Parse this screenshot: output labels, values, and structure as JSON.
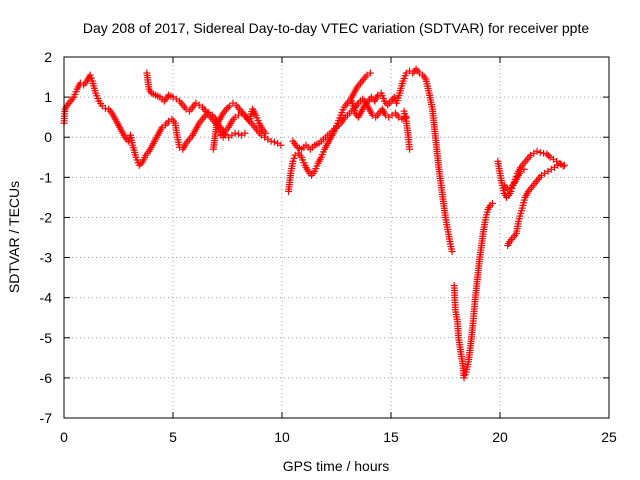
{
  "chart_data": {
    "type": "scatter",
    "title": "Day 208 of 2017, Sidereal Day-to-day VTEC variation (SDTVAR) for receiver ppte",
    "xlabel": "GPS time / hours",
    "ylabel": "SDTVAR / TECUs",
    "xlim": [
      0,
      25
    ],
    "ylim": [
      -7,
      2
    ],
    "xticks": [
      "0",
      "5",
      "10",
      "15",
      "20",
      "25"
    ],
    "yticks": [
      "2",
      "1",
      "0",
      "-1",
      "-2",
      "-3",
      "-4",
      "-5",
      "-6",
      "-7"
    ],
    "grid": true,
    "marker": "+",
    "series_color": "#ff0000",
    "segments": [
      [
        [
          0.0,
          0.35
        ],
        [
          0.05,
          0.7
        ],
        [
          0.15,
          0.8
        ],
        [
          0.3,
          0.9
        ],
        [
          0.45,
          1.0
        ],
        [
          0.6,
          1.2
        ],
        [
          0.75,
          1.35
        ],
        [
          0.9,
          1.3
        ],
        [
          1.05,
          1.4
        ],
        [
          1.2,
          1.55
        ],
        [
          1.3,
          1.4
        ],
        [
          1.45,
          1.1
        ],
        [
          1.6,
          0.9
        ],
        [
          1.75,
          0.78
        ],
        [
          1.9,
          0.72
        ],
        [
          2.05,
          0.7
        ],
        [
          2.2,
          0.6
        ],
        [
          2.35,
          0.45
        ],
        [
          2.5,
          0.3
        ],
        [
          2.65,
          0.15
        ],
        [
          2.8,
          0.0
        ],
        [
          2.95,
          -0.1
        ],
        [
          3.05,
          0.05
        ],
        [
          3.15,
          -0.2
        ],
        [
          3.3,
          -0.5
        ],
        [
          3.45,
          -0.7
        ],
        [
          3.6,
          -0.62
        ],
        [
          3.75,
          -0.45
        ],
        [
          3.9,
          -0.35
        ],
        [
          4.05,
          -0.2
        ],
        [
          4.2,
          -0.05
        ],
        [
          4.35,
          0.1
        ],
        [
          4.5,
          0.25
        ],
        [
          4.65,
          0.3
        ],
        [
          4.8,
          0.4
        ],
        [
          4.95,
          0.45
        ],
        [
          5.1,
          0.35
        ],
        [
          5.2,
          0.0
        ],
        [
          5.3,
          -0.25
        ],
        [
          5.45,
          -0.3
        ],
        [
          5.6,
          -0.15
        ],
        [
          5.75,
          -0.05
        ],
        [
          5.9,
          0.05
        ],
        [
          6.05,
          0.2
        ],
        [
          6.2,
          0.35
        ],
        [
          6.35,
          0.45
        ],
        [
          6.5,
          0.55
        ],
        [
          6.65,
          0.62
        ],
        [
          6.8,
          0.55
        ],
        [
          6.95,
          0.45
        ],
        [
          7.1,
          0.3
        ],
        [
          7.25,
          0.2
        ],
        [
          7.4,
          0.05
        ],
        [
          7.55,
          0.0
        ],
        [
          7.7,
          0.05
        ],
        [
          7.85,
          0.1
        ],
        [
          8.0,
          0.08
        ],
        [
          8.15,
          0.05
        ],
        [
          8.3,
          0.1
        ]
      ],
      [
        [
          3.8,
          1.6
        ],
        [
          3.9,
          1.2
        ],
        [
          4.0,
          1.1
        ],
        [
          4.2,
          1.05
        ],
        [
          4.4,
          1.0
        ],
        [
          4.6,
          0.9
        ],
        [
          4.8,
          1.05
        ],
        [
          5.0,
          1.0
        ],
        [
          5.15,
          0.95
        ],
        [
          5.3,
          0.9
        ],
        [
          5.45,
          0.8
        ],
        [
          5.6,
          0.7
        ],
        [
          5.75,
          0.65
        ],
        [
          5.9,
          0.75
        ],
        [
          6.05,
          0.85
        ],
        [
          6.2,
          0.8
        ],
        [
          6.35,
          0.75
        ],
        [
          6.5,
          0.65
        ],
        [
          6.65,
          0.55
        ],
        [
          6.8,
          0.45
        ],
        [
          6.95,
          0.35
        ],
        [
          7.1,
          0.2
        ],
        [
          7.2,
          0.05
        ],
        [
          7.3,
          0.0
        ],
        [
          7.4,
          0.15
        ],
        [
          7.55,
          0.25
        ],
        [
          7.7,
          0.4
        ],
        [
          7.85,
          0.5
        ],
        [
          8.0,
          0.55
        ],
        [
          8.15,
          0.6
        ],
        [
          8.3,
          0.55
        ],
        [
          8.45,
          0.45
        ],
        [
          8.6,
          0.35
        ],
        [
          8.75,
          0.25
        ],
        [
          8.9,
          0.15
        ],
        [
          9.05,
          0.05
        ],
        [
          9.2,
          0.0
        ],
        [
          9.35,
          -0.05
        ],
        [
          9.5,
          -0.1
        ],
        [
          9.65,
          -0.12
        ],
        [
          9.8,
          -0.15
        ],
        [
          9.95,
          -0.2
        ]
      ],
      [
        [
          6.85,
          -0.3
        ],
        [
          7.0,
          0.3
        ],
        [
          7.15,
          0.45
        ],
        [
          7.3,
          0.6
        ],
        [
          7.45,
          0.7
        ],
        [
          7.6,
          0.78
        ],
        [
          7.75,
          0.85
        ],
        [
          7.9,
          0.8
        ],
        [
          8.05,
          0.7
        ],
        [
          8.2,
          0.6
        ],
        [
          8.35,
          0.5
        ],
        [
          8.5,
          0.4
        ],
        [
          8.65,
          0.7
        ],
        [
          8.8,
          0.55
        ],
        [
          8.95,
          0.35
        ],
        [
          9.1,
          0.2
        ],
        [
          9.25,
          0.1
        ]
      ],
      [
        [
          10.3,
          -1.35
        ],
        [
          10.4,
          -0.9
        ],
        [
          10.5,
          -0.6
        ],
        [
          10.6,
          -0.45
        ],
        [
          10.75,
          -0.4
        ],
        [
          10.9,
          -0.5
        ],
        [
          11.05,
          -0.7
        ],
        [
          11.2,
          -0.85
        ],
        [
          11.35,
          -0.95
        ],
        [
          11.5,
          -0.85
        ],
        [
          11.65,
          -0.65
        ],
        [
          11.8,
          -0.5
        ],
        [
          11.95,
          -0.3
        ],
        [
          12.1,
          -0.15
        ],
        [
          12.25,
          0.0
        ],
        [
          12.4,
          0.15
        ],
        [
          12.55,
          0.35
        ],
        [
          12.7,
          0.55
        ],
        [
          12.85,
          0.75
        ],
        [
          13.0,
          0.85
        ],
        [
          13.15,
          0.95
        ],
        [
          13.3,
          1.1
        ],
        [
          13.45,
          1.25
        ],
        [
          13.6,
          1.35
        ],
        [
          13.75,
          1.45
        ],
        [
          13.9,
          1.55
        ],
        [
          14.05,
          1.6
        ]
      ],
      [
        [
          10.5,
          -0.1
        ],
        [
          10.7,
          -0.25
        ],
        [
          10.9,
          -0.3
        ],
        [
          11.1,
          -0.2
        ],
        [
          11.3,
          -0.3
        ],
        [
          11.5,
          -0.2
        ],
        [
          11.7,
          -0.15
        ],
        [
          11.9,
          -0.05
        ],
        [
          12.1,
          0.05
        ],
        [
          12.3,
          0.15
        ],
        [
          12.5,
          0.25
        ],
        [
          12.7,
          0.35
        ],
        [
          12.9,
          0.5
        ],
        [
          13.1,
          0.6
        ],
        [
          13.3,
          0.7
        ],
        [
          13.5,
          0.85
        ],
        [
          13.7,
          0.95
        ],
        [
          13.85,
          0.85
        ],
        [
          14.0,
          0.7
        ],
        [
          14.15,
          0.55
        ],
        [
          14.3,
          0.5
        ],
        [
          14.45,
          0.6
        ],
        [
          14.6,
          0.7
        ],
        [
          14.75,
          0.55
        ],
        [
          14.9,
          0.5
        ],
        [
          15.05,
          0.55
        ],
        [
          15.2,
          0.6
        ],
        [
          15.35,
          0.5
        ],
        [
          15.5,
          0.45
        ],
        [
          15.7,
          0.5
        ]
      ],
      [
        [
          13.2,
          0.9
        ],
        [
          13.35,
          0.6
        ],
        [
          13.5,
          0.5
        ],
        [
          13.65,
          0.65
        ],
        [
          13.8,
          0.8
        ],
        [
          13.95,
          0.9
        ],
        [
          14.1,
          1.0
        ],
        [
          14.25,
          0.9
        ],
        [
          14.4,
          1.05
        ],
        [
          14.55,
          1.1
        ],
        [
          14.7,
          0.9
        ],
        [
          14.85,
          0.8
        ],
        [
          15.0,
          0.9
        ],
        [
          15.15,
          1.0
        ],
        [
          15.25,
          0.85
        ],
        [
          15.4,
          1.1
        ],
        [
          15.55,
          1.4
        ],
        [
          15.7,
          1.6
        ],
        [
          15.85,
          1.65
        ],
        [
          16.0,
          1.6
        ],
        [
          16.15,
          1.7
        ],
        [
          16.3,
          1.6
        ],
        [
          16.45,
          1.55
        ],
        [
          16.6,
          1.45
        ],
        [
          16.75,
          1.1
        ],
        [
          16.9,
          0.7
        ],
        [
          17.0,
          0.2
        ],
        [
          17.1,
          -0.3
        ],
        [
          17.2,
          -0.8
        ],
        [
          17.3,
          -1.2
        ],
        [
          17.4,
          -1.6
        ],
        [
          17.5,
          -2.0
        ],
        [
          17.6,
          -2.3
        ],
        [
          17.7,
          -2.6
        ],
        [
          17.8,
          -2.85
        ]
      ],
      [
        [
          15.6,
          0.65
        ],
        [
          15.7,
          0.4
        ],
        [
          15.8,
          0.0
        ],
        [
          15.85,
          -0.3
        ]
      ],
      [
        [
          17.9,
          -3.7
        ],
        [
          17.95,
          -4.3
        ],
        [
          18.05,
          -4.6
        ],
        [
          18.1,
          -5.0
        ],
        [
          18.2,
          -5.35
        ],
        [
          18.3,
          -5.7
        ],
        [
          18.35,
          -6.0
        ],
        [
          18.45,
          -5.85
        ],
        [
          18.55,
          -5.6
        ],
        [
          18.65,
          -5.2
        ],
        [
          18.75,
          -4.7
        ],
        [
          18.85,
          -4.1
        ],
        [
          18.95,
          -3.6
        ],
        [
          19.05,
          -3.1
        ],
        [
          19.15,
          -2.7
        ],
        [
          19.25,
          -2.3
        ],
        [
          19.35,
          -2.0
        ],
        [
          19.45,
          -1.8
        ],
        [
          19.55,
          -1.7
        ],
        [
          19.65,
          -1.65
        ]
      ],
      [
        [
          19.9,
          -0.6
        ],
        [
          20.0,
          -0.9
        ],
        [
          20.1,
          -1.2
        ],
        [
          20.2,
          -1.4
        ],
        [
          20.3,
          -1.5
        ],
        [
          20.4,
          -1.45
        ],
        [
          20.5,
          -1.35
        ],
        [
          20.6,
          -1.2
        ],
        [
          20.7,
          -1.05
        ],
        [
          20.8,
          -0.9
        ],
        [
          20.95,
          -0.75
        ],
        [
          21.1,
          -0.65
        ],
        [
          21.25,
          -0.55
        ],
        [
          21.4,
          -0.45
        ],
        [
          21.55,
          -0.4
        ],
        [
          21.7,
          -0.35
        ],
        [
          21.85,
          -0.38
        ],
        [
          22.0,
          -0.4
        ],
        [
          22.15,
          -0.42
        ],
        [
          22.3,
          -0.5
        ],
        [
          22.45,
          -0.55
        ],
        [
          22.6,
          -0.6
        ],
        [
          22.75,
          -0.65
        ],
        [
          22.9,
          -0.72
        ]
      ],
      [
        [
          20.2,
          -1.2
        ],
        [
          20.35,
          -1.3
        ],
        [
          20.5,
          -1.25
        ],
        [
          20.65,
          -1.15
        ],
        [
          20.8,
          -1.0
        ],
        [
          20.95,
          -0.85
        ],
        [
          21.1,
          -0.8
        ]
      ],
      [
        [
          20.35,
          -2.7
        ],
        [
          20.45,
          -2.6
        ],
        [
          20.6,
          -2.5
        ],
        [
          20.75,
          -2.4
        ],
        [
          20.85,
          -2.1
        ],
        [
          20.95,
          -1.9
        ],
        [
          21.05,
          -1.7
        ],
        [
          21.15,
          -1.5
        ],
        [
          21.3,
          -1.35
        ],
        [
          21.45,
          -1.25
        ],
        [
          21.6,
          -1.15
        ],
        [
          21.75,
          -1.05
        ],
        [
          21.9,
          -0.95
        ],
        [
          22.05,
          -0.9
        ],
        [
          22.2,
          -0.85
        ],
        [
          22.35,
          -0.8
        ],
        [
          22.5,
          -0.75
        ],
        [
          22.65,
          -0.7
        ],
        [
          22.8,
          -0.68
        ],
        [
          22.95,
          -0.7
        ]
      ]
    ]
  }
}
